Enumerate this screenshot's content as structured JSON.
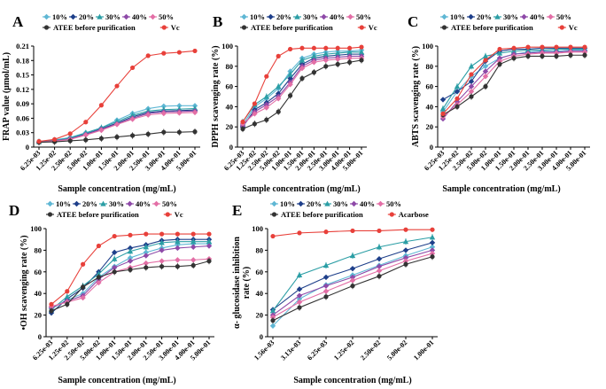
{
  "figure": {
    "colors": {
      "10%": "#5fb7d4",
      "20%": "#1e3f8a",
      "30%": "#2b9ea5",
      "40%": "#8e4aa8",
      "50%": "#e36fa6",
      "ATEE before purification": "#333333",
      "Vc": "#e8403a",
      "Acarbose": "#e8403a"
    }
  },
  "chart_data": [
    {
      "panel": "A",
      "type": "line",
      "ylabel": "FRAP value (μmol/mL)",
      "xlabel": "Sample concentration (mg/mL)",
      "categories": [
        "6.25e-03",
        "1.25e-02",
        "2.50e-02",
        "5.00e-02",
        "1.00e-01",
        "1.50e-01",
        "2.00e-01",
        "2.50e-01",
        "3.00e-01",
        "4.00e-01",
        "5.00e-01"
      ],
      "yticks": [
        "0",
        "0.03",
        "0.06",
        "0.09",
        "0.12",
        "0.15",
        "0.18",
        "0.21"
      ],
      "ylim": [
        0,
        0.21
      ],
      "legend": [
        "10%",
        "20%",
        "30%",
        "40%",
        "50%",
        "ATEE before purification",
        "Vc"
      ],
      "series": [
        {
          "name": "10%",
          "values": [
            0.011,
            0.015,
            0.02,
            0.03,
            0.04,
            0.056,
            0.07,
            0.08,
            0.085,
            0.086,
            0.086
          ]
        },
        {
          "name": "20%",
          "values": [
            0.01,
            0.013,
            0.018,
            0.027,
            0.038,
            0.05,
            0.063,
            0.072,
            0.075,
            0.076,
            0.077
          ]
        },
        {
          "name": "30%",
          "values": [
            0.011,
            0.014,
            0.019,
            0.029,
            0.04,
            0.053,
            0.066,
            0.075,
            0.078,
            0.079,
            0.08
          ]
        },
        {
          "name": "40%",
          "values": [
            0.01,
            0.013,
            0.017,
            0.026,
            0.037,
            0.048,
            0.06,
            0.07,
            0.073,
            0.074,
            0.075
          ]
        },
        {
          "name": "50%",
          "values": [
            0.01,
            0.012,
            0.016,
            0.025,
            0.035,
            0.047,
            0.058,
            0.067,
            0.07,
            0.071,
            0.072
          ]
        },
        {
          "name": "ATEE before purification",
          "values": [
            0.01,
            0.011,
            0.013,
            0.015,
            0.018,
            0.021,
            0.024,
            0.027,
            0.031,
            0.031,
            0.032
          ]
        },
        {
          "name": "Vc",
          "values": [
            0.012,
            0.016,
            0.028,
            0.052,
            0.087,
            0.127,
            0.165,
            0.19,
            0.195,
            0.197,
            0.2
          ]
        }
      ]
    },
    {
      "panel": "B",
      "type": "line",
      "ylabel": "DPPH scavenging rate (%)",
      "xlabel": "Sample concentration (mg/mL)",
      "categories": [
        "6.25e-03",
        "1.25e-02",
        "2.50e-02",
        "5.00e-02",
        "1.00e-01",
        "1.50e-01",
        "2.00e-01",
        "2.50e-01",
        "3.00e-01",
        "4.00e-01",
        "5.00e-01"
      ],
      "yticks": [
        "0",
        "20",
        "40",
        "60",
        "80",
        "100"
      ],
      "ylim": [
        0,
        100
      ],
      "legend": [
        "10%",
        "20%",
        "30%",
        "40%",
        "50%",
        "ATEE before purification",
        "Vc"
      ],
      "series": [
        {
          "name": "10%",
          "values": [
            22,
            40,
            48,
            58,
            75,
            88,
            92,
            94,
            95,
            95,
            96
          ]
        },
        {
          "name": "20%",
          "values": [
            20,
            37,
            44,
            53,
            68,
            82,
            88,
            90,
            91,
            92,
            92
          ]
        },
        {
          "name": "30%",
          "values": [
            25,
            42,
            50,
            60,
            72,
            86,
            90,
            92,
            93,
            94,
            94
          ]
        },
        {
          "name": "40%",
          "values": [
            21,
            35,
            42,
            50,
            64,
            80,
            86,
            88,
            89,
            90,
            90
          ]
        },
        {
          "name": "50%",
          "values": [
            23,
            33,
            39,
            48,
            62,
            78,
            84,
            86,
            87,
            88,
            88
          ]
        },
        {
          "name": "ATEE before purification",
          "values": [
            18,
            23,
            27,
            35,
            51,
            68,
            74,
            80,
            82,
            84,
            86
          ]
        },
        {
          "name": "Vc",
          "values": [
            25,
            43,
            70,
            90,
            97,
            98,
            98,
            98,
            98,
            98,
            99
          ]
        }
      ]
    },
    {
      "panel": "C",
      "type": "line",
      "ylabel": "ABTS scavenging rate (%)",
      "xlabel": "Sample concentration (mg/mL)",
      "categories": [
        "6.25e-03",
        "1.25e-02",
        "2.50e-02",
        "5.00e-02",
        "1.00e-01",
        "1.50e-01",
        "2.00e-01",
        "2.50e-01",
        "3.00e-01",
        "4.00e-01",
        "5.00e-01"
      ],
      "yticks": [
        "0",
        "20",
        "40",
        "60",
        "80",
        "100"
      ],
      "ylim": [
        0,
        100
      ],
      "legend": [
        "10%",
        "20%",
        "30%",
        "40%",
        "50%",
        "ATEE before purification",
        "Vc"
      ],
      "series": [
        {
          "name": "10%",
          "values": [
            35,
            55,
            70,
            80,
            88,
            92,
            94,
            95,
            95,
            96,
            96
          ]
        },
        {
          "name": "20%",
          "values": [
            47,
            55,
            65,
            85,
            95,
            97,
            97,
            98,
            98,
            98,
            98
          ]
        },
        {
          "name": "30%",
          "values": [
            38,
            60,
            80,
            90,
            93,
            95,
            96,
            96,
            97,
            97,
            97
          ]
        },
        {
          "name": "40%",
          "values": [
            28,
            45,
            60,
            75,
            88,
            92,
            93,
            94,
            94,
            95,
            95
          ]
        },
        {
          "name": "50%",
          "values": [
            30,
            42,
            55,
            70,
            85,
            90,
            92,
            93,
            93,
            94,
            94
          ]
        },
        {
          "name": "ATEE before purification",
          "values": [
            32,
            40,
            50,
            60,
            82,
            88,
            90,
            90,
            90,
            91,
            91
          ]
        },
        {
          "name": "Vc",
          "values": [
            33,
            48,
            72,
            86,
            97,
            98,
            99,
            99,
            99,
            99,
            99
          ]
        }
      ]
    },
    {
      "panel": "D",
      "type": "line",
      "ylabel": "•OH scavenging rate (%)",
      "xlabel": "Sample concentration (mg/mL)",
      "categories": [
        "6.25e-03",
        "1.25e-02",
        "2.50e-02",
        "5.00e-02",
        "1.00e-01",
        "1.50e-01",
        "2.00e-01",
        "2.50e-01",
        "3.00e-01",
        "4.00e-01",
        "5.00e-01"
      ],
      "yticks": [
        "0",
        "20",
        "40",
        "60",
        "80",
        "100"
      ],
      "ylim": [
        0,
        100
      ],
      "legend": [
        "10%",
        "20%",
        "30%",
        "40%",
        "50%",
        "ATEE before purification",
        "Vc"
      ],
      "series": [
        {
          "name": "10%",
          "values": [
            26,
            34,
            40,
            55,
            65,
            73,
            78,
            82,
            85,
            86,
            86
          ]
        },
        {
          "name": "20%",
          "values": [
            22,
            35,
            45,
            60,
            78,
            82,
            85,
            89,
            90,
            90,
            90
          ]
        },
        {
          "name": "30%",
          "values": [
            25,
            37,
            47,
            58,
            72,
            79,
            83,
            87,
            88,
            88,
            88
          ]
        },
        {
          "name": "40%",
          "values": [
            27,
            33,
            38,
            53,
            64,
            70,
            75,
            80,
            82,
            83,
            84
          ]
        },
        {
          "name": "50%",
          "values": [
            28,
            32,
            36,
            50,
            60,
            64,
            68,
            70,
            71,
            71,
            72
          ]
        },
        {
          "name": "ATEE before purification",
          "values": [
            24,
            30,
            46,
            55,
            60,
            62,
            64,
            65,
            65,
            66,
            70
          ]
        },
        {
          "name": "Vc",
          "values": [
            30,
            42,
            67,
            84,
            93,
            94,
            95,
            95,
            95,
            95,
            95
          ]
        }
      ]
    },
    {
      "panel": "E",
      "type": "line",
      "ylabel": "α- glucosidase inhibition rate (%)",
      "xlabel": "Sample concentration (mg/mL)",
      "categories": [
        "1.56e-03",
        "3.13e-03",
        "6.25e-03",
        "1.25e-02",
        "2.50e-02",
        "5.00e-02",
        "1.00e-01"
      ],
      "yticks": [
        "0",
        "20",
        "40",
        "60",
        "80",
        "100"
      ],
      "ylim": [
        0,
        100
      ],
      "legend": [
        "10%",
        "20%",
        "30%",
        "40%",
        "50%",
        "ATEE before purification",
        "Acarbose"
      ],
      "series": [
        {
          "name": "10%",
          "values": [
            10,
            35,
            48,
            57,
            66,
            75,
            83
          ]
        },
        {
          "name": "20%",
          "values": [
            25,
            44,
            55,
            63,
            72,
            80,
            87
          ]
        },
        {
          "name": "30%",
          "values": [
            24,
            57,
            66,
            75,
            83,
            88,
            92
          ]
        },
        {
          "name": "40%",
          "values": [
            20,
            38,
            47,
            55,
            65,
            73,
            80
          ]
        },
        {
          "name": "50%",
          "values": [
            18,
            32,
            42,
            52,
            61,
            70,
            77
          ]
        },
        {
          "name": "ATEE before purification",
          "values": [
            15,
            27,
            37,
            47,
            56,
            67,
            74
          ]
        },
        {
          "name": "Acarbose",
          "values": [
            93,
            96,
            97,
            98,
            98,
            99,
            99
          ]
        }
      ]
    }
  ]
}
